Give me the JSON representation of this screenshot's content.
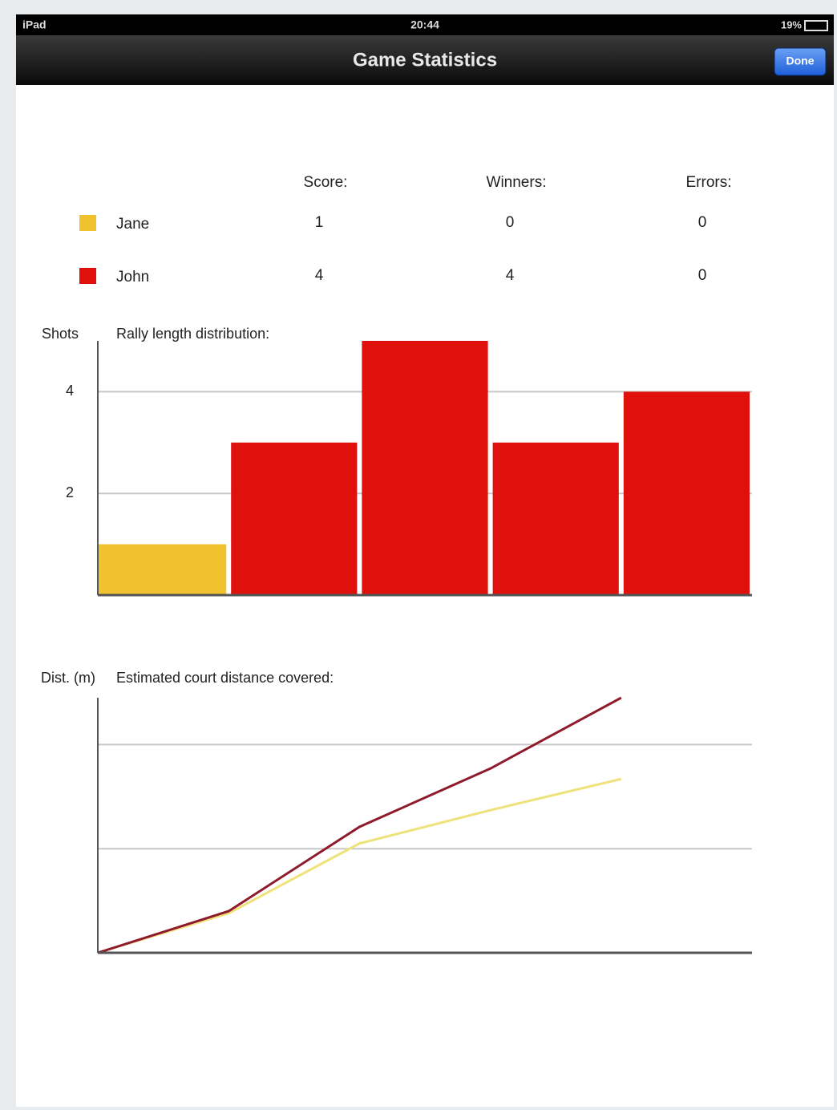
{
  "status_bar": {
    "device": "iPad",
    "time": "20:44",
    "battery": "19%"
  },
  "nav_bar": {
    "title": "Game Statistics",
    "done": "Done"
  },
  "stats": {
    "columns": [
      "Score:",
      "Winners:",
      "Errors:"
    ],
    "rows": [
      {
        "name": "Jane",
        "color": "#f0c22e",
        "values": [
          1,
          0,
          0
        ]
      },
      {
        "name": "John",
        "color": "#e0100c",
        "values": [
          4,
          4,
          0
        ]
      }
    ]
  },
  "chart_data": [
    {
      "type": "bar",
      "title": "Rally length distribution:",
      "y_label": "Shots",
      "categories": [
        null,
        null,
        null,
        null,
        null
      ],
      "values": [
        1,
        3,
        5,
        3,
        4
      ],
      "colors": [
        "#f0c22e",
        "#e0100c",
        "#e0100c",
        "#e0100c",
        "#e0100c"
      ],
      "ylim": [
        0,
        5
      ],
      "yticks": [
        2,
        4
      ],
      "grid": true
    },
    {
      "type": "line",
      "title": "Estimated court distance covered:",
      "y_label": "Dist. (m)",
      "x": [
        0,
        1,
        2,
        3,
        4
      ],
      "xlim": [
        0,
        5
      ],
      "ylim": [
        0,
        2.45
      ],
      "gridlines": [
        1,
        2
      ],
      "series": [
        {
          "name": "Jane",
          "color": "#efe27a",
          "values": [
            0,
            0.38,
            1.05,
            1.37,
            1.67
          ]
        },
        {
          "name": "John",
          "color": "#8e1b2c",
          "values": [
            0,
            0.4,
            1.21,
            1.77,
            2.45
          ]
        }
      ]
    }
  ]
}
